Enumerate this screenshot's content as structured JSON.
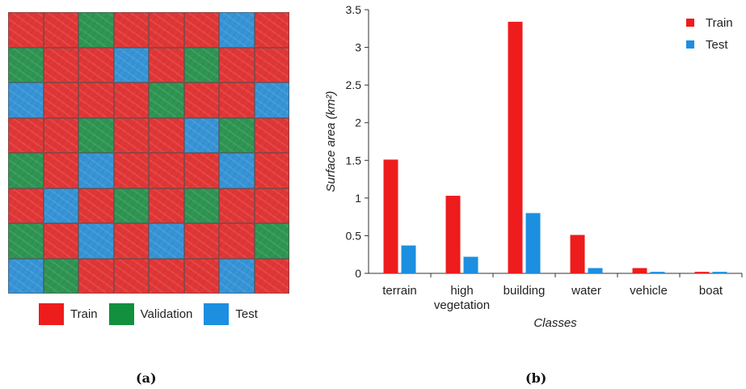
{
  "panel_a": {
    "caption": "(a)",
    "grid": [
      [
        "Train",
        "Train",
        "Validation",
        "Train",
        "Train",
        "Train",
        "Test",
        "Train"
      ],
      [
        "Validation",
        "Train",
        "Train",
        "Test",
        "Train",
        "Validation",
        "Train",
        "Train"
      ],
      [
        "Test",
        "Train",
        "Train",
        "Train",
        "Validation",
        "Train",
        "Train",
        "Test"
      ],
      [
        "Train",
        "Train",
        "Validation",
        "Train",
        "Train",
        "Test",
        "Validation",
        "Train"
      ],
      [
        "Validation",
        "Train",
        "Test",
        "Train",
        "Train",
        "Train",
        "Test",
        "Train"
      ],
      [
        "Train",
        "Test",
        "Train",
        "Validation",
        "Train",
        "Validation",
        "Train",
        "Train"
      ],
      [
        "Validation",
        "Train",
        "Test",
        "Train",
        "Test",
        "Train",
        "Train",
        "Validation"
      ],
      [
        "Test",
        "Validation",
        "Train",
        "Train",
        "Train",
        "Train",
        "Test",
        "Train"
      ]
    ],
    "legend": [
      {
        "label": "Train",
        "color": "#ee1c1c"
      },
      {
        "label": "Validation",
        "color": "#12903e"
      },
      {
        "label": "Test",
        "color": "#1c8fe0"
      }
    ]
  },
  "panel_b": {
    "caption": "(b)"
  },
  "chart_data": {
    "type": "bar",
    "categories": [
      "terrain",
      [
        "high",
        "vegetation"
      ],
      "building",
      "water",
      "vehicle",
      "boat"
    ],
    "series": [
      {
        "name": "Train",
        "color": "#ee1c1c",
        "values": [
          1.51,
          1.03,
          3.34,
          0.51,
          0.07,
          0.02
        ]
      },
      {
        "name": "Test",
        "color": "#1c8fe0",
        "values": [
          0.37,
          0.22,
          0.8,
          0.07,
          0.02,
          0.02
        ]
      }
    ],
    "xlabel": "Classes",
    "ylabel": "Surface area (km²)",
    "ylim": [
      0,
      3.5
    ],
    "yticks": [
      "0",
      "0.5",
      "1",
      "1.5",
      "2",
      "2.5",
      "3",
      "3.5"
    ],
    "grid": false,
    "legend_position": "top-right"
  }
}
